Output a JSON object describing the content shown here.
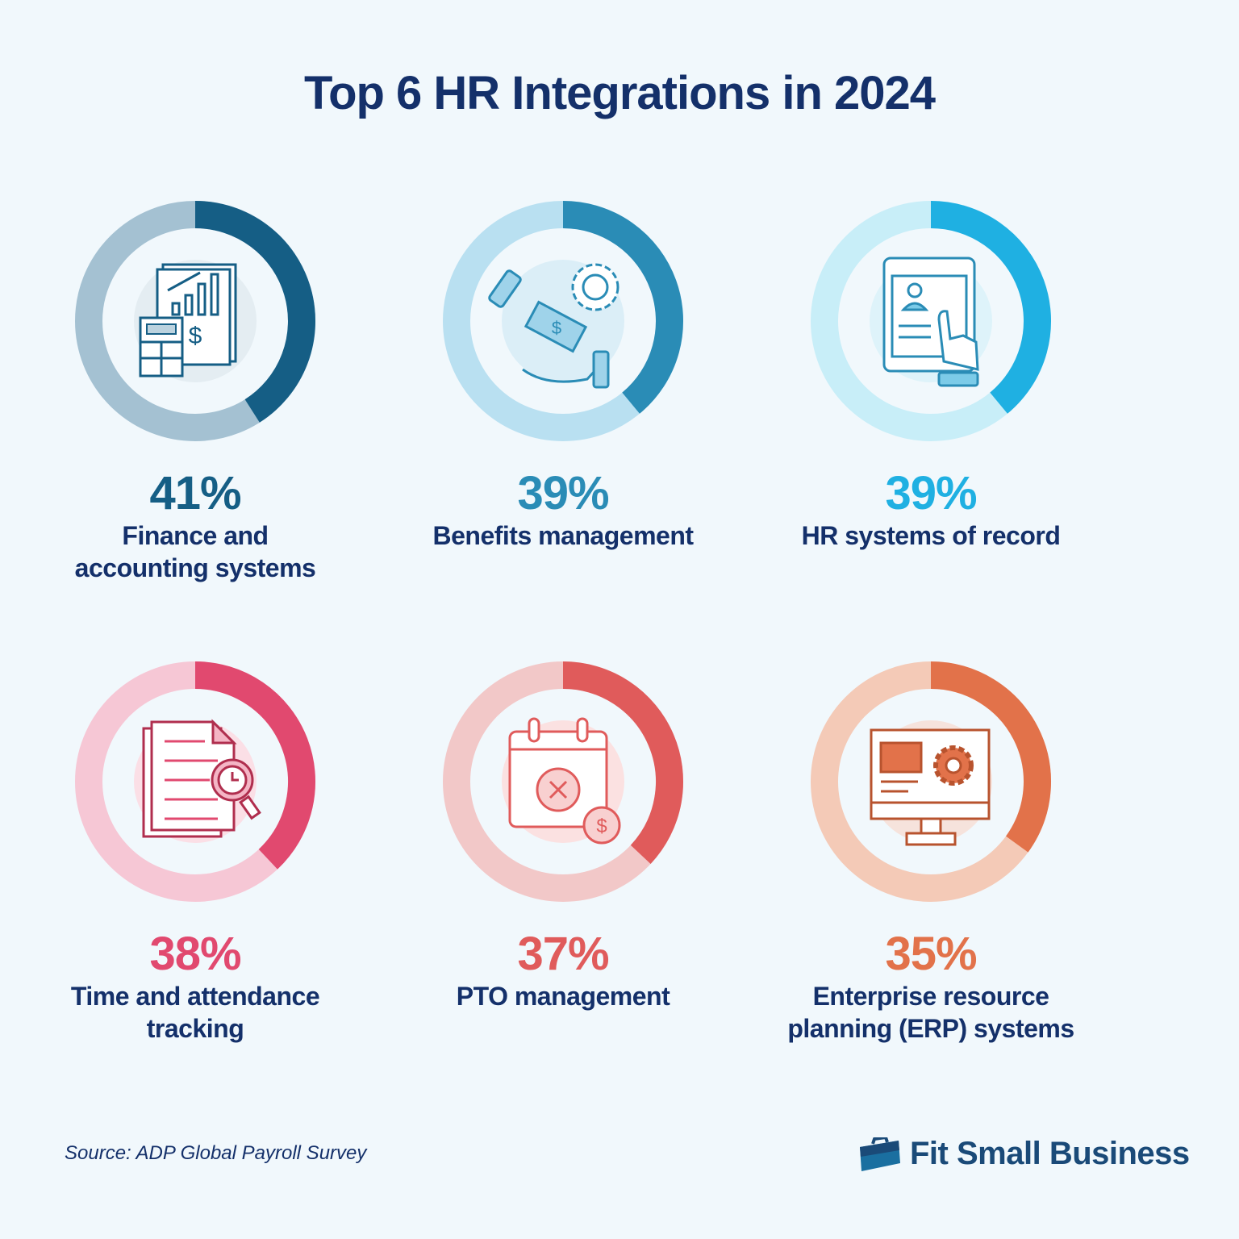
{
  "chart_data": {
    "type": "pie",
    "title": "Top 6 HR Integrations in 2024",
    "unit": "%",
    "items": [
      {
        "label": "Finance and accounting systems",
        "label_lines": [
          "Finance and",
          "accounting systems"
        ],
        "value": 41,
        "display": "41%",
        "icon": "finance-calculator-chart-icon",
        "color": "#155e85",
        "track_color": "#a4c1d2"
      },
      {
        "label": "Benefits management",
        "label_lines": [
          "Benefits management"
        ],
        "value": 39,
        "display": "39%",
        "icon": "hand-money-gear-icon",
        "color": "#2a8cb6",
        "track_color": "#b9e0f1"
      },
      {
        "label": "HR systems of record",
        "label_lines": [
          "HR systems of record"
        ],
        "value": 39,
        "display": "39%",
        "icon": "tablet-profile-touch-icon",
        "color": "#1fb0e2",
        "track_color": "#c8eef8"
      },
      {
        "label": "Time and attendance tracking",
        "label_lines": [
          "Time and attendance",
          "tracking"
        ],
        "value": 38,
        "display": "38%",
        "icon": "document-clock-magnifier-icon",
        "color": "#e1496f",
        "track_color": "#f6c7d5"
      },
      {
        "label": "PTO management",
        "label_lines": [
          "PTO management"
        ],
        "value": 37,
        "display": "37%",
        "icon": "calendar-cancel-dollar-icon",
        "color": "#e05b5b",
        "track_color": "#f2c8c8"
      },
      {
        "label": "Enterprise resource planning (ERP) systems",
        "label_lines": [
          "Enterprise resource",
          "planning (ERP) systems"
        ],
        "value": 35,
        "display": "35%",
        "icon": "monitor-gear-icon",
        "color": "#e2724a",
        "track_color": "#f4cab7"
      }
    ]
  },
  "source": "Source:  ADP Global Payroll Survey",
  "brand": {
    "name": "Fit Small Business",
    "icon": "briefcase-icon"
  }
}
